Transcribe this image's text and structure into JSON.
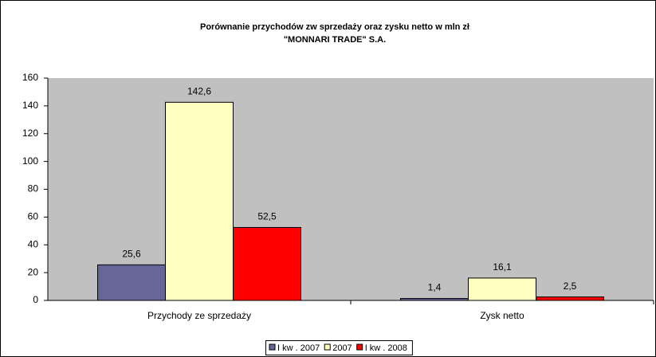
{
  "chart_data": {
    "type": "bar",
    "title": [
      "Porównanie przychodów zw sprzedaży oraz zysku netto w mln zł",
      "\"MONNARI TRADE\" S.A."
    ],
    "categories": [
      "Przychody ze sprzedaży",
      "Zysk netto"
    ],
    "series": [
      {
        "name": "I kw . 2007",
        "color": "#666699",
        "values": [
          25.6,
          1.4
        ],
        "value_labels": [
          "25,6",
          "1,4"
        ]
      },
      {
        "name": "2007",
        "color": "#ffffc0",
        "values": [
          142.6,
          16.1
        ],
        "value_labels": [
          "142,6",
          "16,1"
        ]
      },
      {
        "name": "I kw . 2008",
        "color": "#ff0000",
        "values": [
          52.5,
          2.5
        ],
        "value_labels": [
          "52,5",
          "2,5"
        ]
      }
    ],
    "ylim": [
      0,
      160
    ],
    "yticks": [
      0,
      20,
      40,
      60,
      80,
      100,
      120,
      140,
      160
    ],
    "grid": false,
    "legend": "bottom"
  }
}
